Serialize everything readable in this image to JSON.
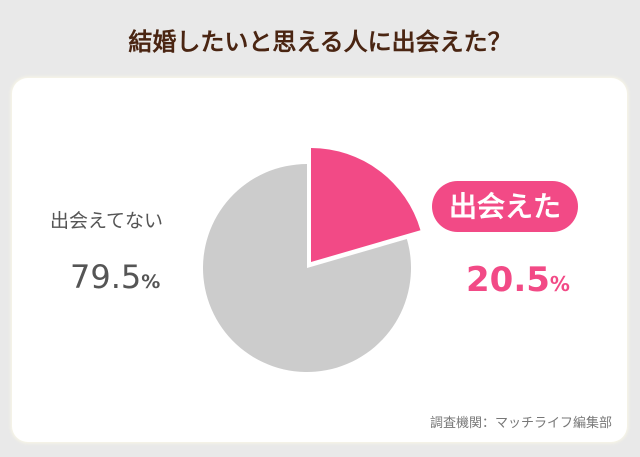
{
  "chart_data": {
    "type": "pie",
    "title": "結婚したいと思える人に出会えた？",
    "slices": [
      {
        "label": "出会えた",
        "value": 20.5,
        "color": "#f24a86",
        "exploded": true
      },
      {
        "label": "出会えてない",
        "value": 79.5,
        "color": "#cccccc"
      }
    ],
    "unit": "%",
    "source": "調査機関：マッチライフ編集部"
  }
}
